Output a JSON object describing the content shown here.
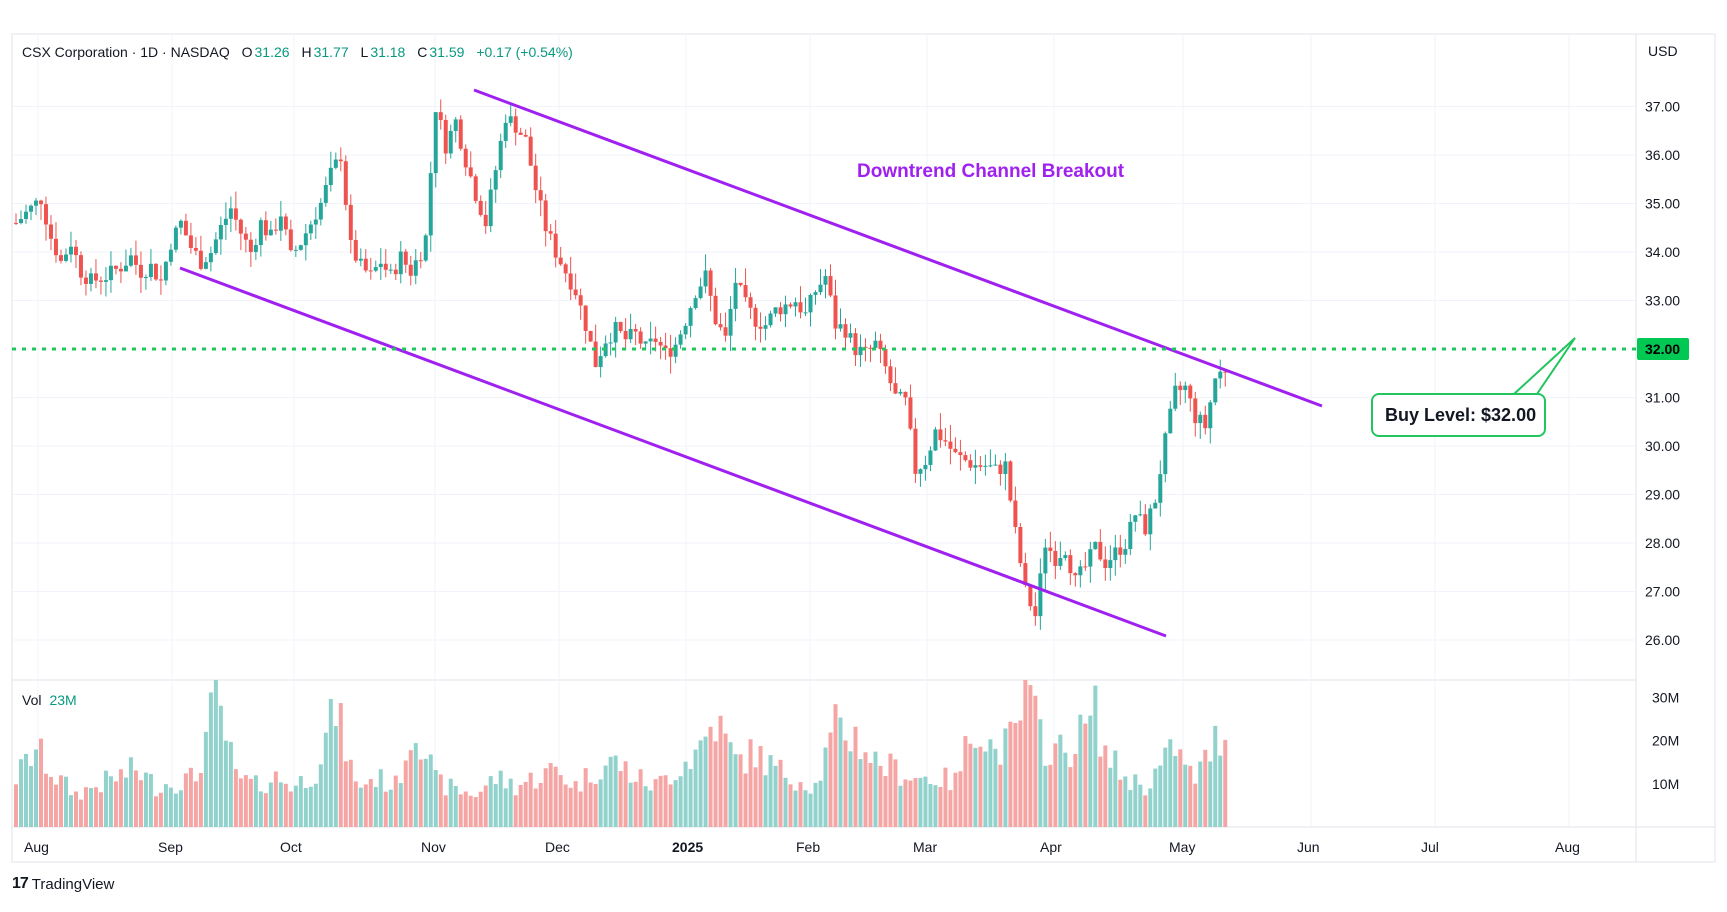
{
  "header": {
    "symbol": "CSX Corporation · 1D · NASDAQ",
    "open_label": "O",
    "open": "31.26",
    "high_label": "H",
    "high": "31.77",
    "low_label": "L",
    "low": "31.18",
    "close_label": "C",
    "close": "31.59",
    "change": "+0.17 (+0.54%)"
  },
  "currency_label": "USD",
  "volume_header": {
    "label": "Vol",
    "value": "23M"
  },
  "brand": "TradingView",
  "colors": {
    "up": "#26a69a",
    "down": "#ef5350",
    "vol_up": "#92d2cc",
    "vol_down": "#f5a6a4",
    "channel": "#a020f0",
    "buy_line": "#22c55e"
  },
  "annotations": {
    "channel_title": "Downtrend Channel Breakout",
    "buy_label": "Buy Level: $32.00",
    "buy_badge": "32.00"
  },
  "chart_data": {
    "type": "candlestick",
    "price_axis": {
      "ticks": [
        "26.00",
        "27.00",
        "28.00",
        "29.00",
        "30.00",
        "31.00",
        "32.00",
        "33.00",
        "34.00",
        "35.00",
        "36.00",
        "37.00"
      ],
      "range": [
        25.5,
        37.5
      ]
    },
    "volume_axis": {
      "ticks": [
        "10M",
        "20M",
        "30M"
      ],
      "max": 34
    },
    "x_axis": {
      "labels": [
        "Aug",
        "Sep",
        "Oct",
        "Nov",
        "Dec",
        "2025",
        "Feb",
        "Mar",
        "Apr",
        "May",
        "Jun",
        "Jul",
        "Aug"
      ]
    },
    "close_series": [
      [
        0,
        34.6
      ],
      [
        3,
        34.9
      ],
      [
        5,
        35.1
      ],
      [
        7,
        34.3
      ],
      [
        9,
        33.8
      ],
      [
        11,
        34.2
      ],
      [
        13,
        33.6
      ],
      [
        15,
        33.4
      ],
      [
        18,
        33.5
      ],
      [
        21,
        33.7
      ],
      [
        23,
        33.9
      ],
      [
        25,
        33.6
      ],
      [
        27,
        33.7
      ],
      [
        29,
        33.4
      ],
      [
        31,
        34.2
      ],
      [
        33,
        34.6
      ],
      [
        35,
        34.1
      ],
      [
        37,
        33.8
      ],
      [
        39,
        34.0
      ],
      [
        41,
        34.5
      ],
      [
        43,
        34.9
      ],
      [
        45,
        34.4
      ],
      [
        47,
        34.0
      ],
      [
        49,
        34.6
      ],
      [
        51,
        34.3
      ],
      [
        53,
        34.8
      ],
      [
        55,
        33.9
      ],
      [
        57,
        34.2
      ],
      [
        59,
        34.6
      ],
      [
        61,
        35.0
      ],
      [
        63,
        35.6
      ],
      [
        65,
        36.0
      ],
      [
        67,
        34.1
      ],
      [
        69,
        33.7
      ],
      [
        71,
        33.5
      ],
      [
        73,
        33.8
      ],
      [
        75,
        33.5
      ],
      [
        77,
        33.9
      ],
      [
        79,
        33.6
      ],
      [
        81,
        34.0
      ],
      [
        82,
        34.3
      ],
      [
        84,
        37.0
      ],
      [
        86,
        36.2
      ],
      [
        88,
        36.7
      ],
      [
        90,
        35.9
      ],
      [
        92,
        35.2
      ],
      [
        94,
        34.6
      ],
      [
        96,
        35.7
      ],
      [
        98,
        36.8
      ],
      [
        100,
        36.6
      ],
      [
        102,
        36.3
      ],
      [
        104,
        35.3
      ],
      [
        106,
        34.5
      ],
      [
        108,
        34.0
      ],
      [
        110,
        33.6
      ],
      [
        112,
        33.2
      ],
      [
        114,
        32.5
      ],
      [
        116,
        31.7
      ],
      [
        118,
        32.2
      ],
      [
        120,
        32.4
      ],
      [
        122,
        32.2
      ],
      [
        124,
        32.3
      ],
      [
        126,
        32.0
      ],
      [
        128,
        32.2
      ],
      [
        130,
        31.9
      ],
      [
        132,
        32.1
      ],
      [
        134,
        32.6
      ],
      [
        136,
        33.2
      ],
      [
        138,
        33.5
      ],
      [
        140,
        32.6
      ],
      [
        142,
        32.2
      ],
      [
        144,
        33.4
      ],
      [
        146,
        32.9
      ],
      [
        148,
        32.6
      ],
      [
        150,
        32.5
      ],
      [
        152,
        32.8
      ],
      [
        154,
        32.9
      ],
      [
        156,
        33.0
      ],
      [
        158,
        32.7
      ],
      [
        160,
        33.2
      ],
      [
        162,
        33.5
      ],
      [
        164,
        32.5
      ],
      [
        166,
        32.4
      ],
      [
        168,
        32.0
      ],
      [
        170,
        31.9
      ],
      [
        172,
        32.1
      ],
      [
        174,
        31.6
      ],
      [
        176,
        31.0
      ],
      [
        178,
        30.9
      ],
      [
        180,
        29.5
      ],
      [
        182,
        29.7
      ],
      [
        184,
        30.3
      ],
      [
        186,
        30.1
      ],
      [
        188,
        29.8
      ],
      [
        190,
        29.7
      ],
      [
        192,
        29.6
      ],
      [
        194,
        29.6
      ],
      [
        196,
        29.5
      ],
      [
        198,
        29.6
      ],
      [
        200,
        28.2
      ],
      [
        202,
        27.0
      ],
      [
        204,
        26.5
      ],
      [
        206,
        28.0
      ],
      [
        208,
        27.7
      ],
      [
        210,
        27.9
      ],
      [
        212,
        27.2
      ],
      [
        214,
        27.5
      ],
      [
        216,
        27.9
      ],
      [
        218,
        27.6
      ],
      [
        220,
        27.8
      ],
      [
        222,
        28.0
      ],
      [
        224,
        28.6
      ],
      [
        226,
        28.3
      ],
      [
        228,
        28.9
      ],
      [
        230,
        30.1
      ],
      [
        232,
        31.1
      ],
      [
        234,
        31.2
      ],
      [
        236,
        30.6
      ],
      [
        238,
        30.4
      ],
      [
        240,
        31.4
      ],
      [
        242,
        31.6
      ]
    ],
    "volume_series": [
      [
        0,
        12
      ],
      [
        4,
        19
      ],
      [
        8,
        12
      ],
      [
        12,
        8
      ],
      [
        16,
        10
      ],
      [
        20,
        12
      ],
      [
        24,
        14
      ],
      [
        28,
        10
      ],
      [
        32,
        11
      ],
      [
        36,
        12
      ],
      [
        40,
        32
      ],
      [
        44,
        12
      ],
      [
        48,
        10
      ],
      [
        52,
        12
      ],
      [
        56,
        10
      ],
      [
        60,
        14
      ],
      [
        64,
        29
      ],
      [
        68,
        10
      ],
      [
        72,
        12
      ],
      [
        76,
        10
      ],
      [
        80,
        26
      ],
      [
        84,
        11
      ],
      [
        88,
        9
      ],
      [
        92,
        8
      ],
      [
        96,
        12
      ],
      [
        100,
        10
      ],
      [
        104,
        12
      ],
      [
        108,
        14
      ],
      [
        112,
        10
      ],
      [
        116,
        14
      ],
      [
        120,
        16
      ],
      [
        124,
        12
      ],
      [
        128,
        10
      ],
      [
        132,
        14
      ],
      [
        136,
        18
      ],
      [
        140,
        26
      ],
      [
        144,
        16
      ],
      [
        148,
        18
      ],
      [
        152,
        14
      ],
      [
        156,
        12
      ],
      [
        160,
        10
      ],
      [
        164,
        24
      ],
      [
        168,
        22
      ],
      [
        172,
        16
      ],
      [
        176,
        14
      ],
      [
        180,
        12
      ],
      [
        184,
        12
      ],
      [
        188,
        11
      ],
      [
        192,
        26
      ],
      [
        196,
        18
      ],
      [
        200,
        22
      ],
      [
        202,
        32
      ],
      [
        206,
        20
      ],
      [
        210,
        18
      ],
      [
        214,
        24
      ],
      [
        216,
        28
      ],
      [
        218,
        18
      ],
      [
        222,
        12
      ],
      [
        226,
        10
      ],
      [
        230,
        16
      ],
      [
        232,
        20
      ],
      [
        234,
        14
      ],
      [
        236,
        12
      ],
      [
        238,
        16
      ],
      [
        240,
        21
      ],
      [
        242,
        24
      ]
    ]
  }
}
